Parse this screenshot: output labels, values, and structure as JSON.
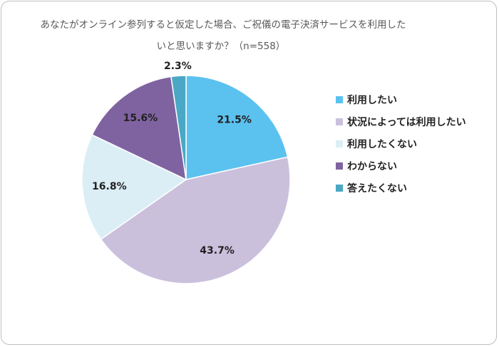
{
  "chart_data": {
    "type": "pie",
    "title_line1": "あなたがオンライン参列すると仮定した場合、ご祝儀の電子決済サービスを利用した",
    "title_line2": "いと思いますか？（n=558）",
    "slices": [
      {
        "label": "利用したい",
        "value": 21.5,
        "display": "21.5%",
        "color": "#5bc2f0"
      },
      {
        "label": "状況によっては利用したい",
        "value": 43.7,
        "display": "43.7%",
        "color": "#cbc0dc"
      },
      {
        "label": "利用したくない",
        "value": 16.8,
        "display": "16.8%",
        "color": "#dbeef5"
      },
      {
        "label": "わからない",
        "value": 15.6,
        "display": "15.6%",
        "color": "#7f63a1"
      },
      {
        "label": "答えたくない",
        "value": 2.3,
        "display": "2.3%",
        "color": "#4ba8c4"
      }
    ],
    "legend_position": "right"
  }
}
